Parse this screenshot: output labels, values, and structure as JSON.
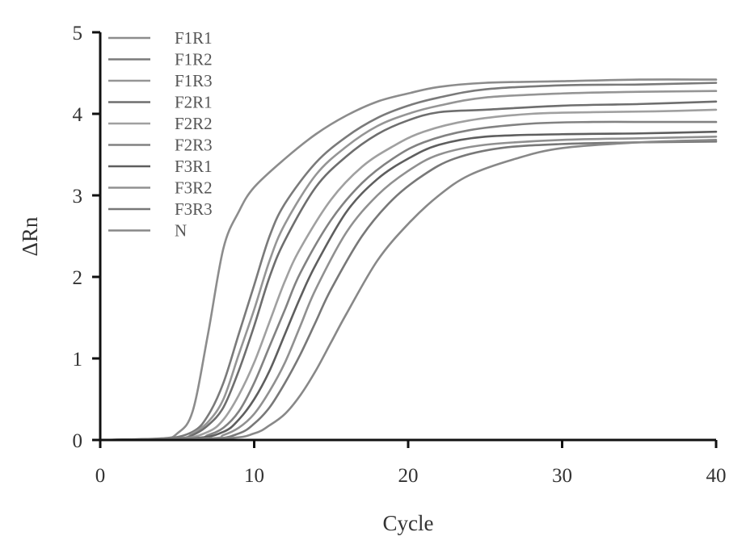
{
  "chart_data": {
    "type": "line",
    "xlabel": "Cycle",
    "ylabel": "ΔRn",
    "xlim": [
      0,
      40
    ],
    "ylim": [
      0,
      5
    ],
    "x_ticks": [
      0,
      10,
      20,
      30,
      40
    ],
    "y_ticks": [
      0,
      1,
      2,
      3,
      4,
      5
    ],
    "grid": false,
    "legend_position": "top-left",
    "series": [
      {
        "name": "F1R1",
        "color": "#8c8c8c",
        "values": [
          [
            0,
            0
          ],
          [
            4,
            0.02
          ],
          [
            5,
            0.08
          ],
          [
            6,
            0.35
          ],
          [
            7,
            1.3
          ],
          [
            8,
            2.35
          ],
          [
            9,
            2.8
          ],
          [
            10,
            3.1
          ],
          [
            12,
            3.45
          ],
          [
            14,
            3.75
          ],
          [
            16,
            3.98
          ],
          [
            18,
            4.15
          ],
          [
            20,
            4.25
          ],
          [
            22,
            4.33
          ],
          [
            25,
            4.38
          ],
          [
            30,
            4.4
          ],
          [
            35,
            4.42
          ],
          [
            40,
            4.42
          ]
        ]
      },
      {
        "name": "F1R2",
        "color": "#7a7a7a",
        "values": [
          [
            0,
            0
          ],
          [
            4,
            0.01
          ],
          [
            6,
            0.1
          ],
          [
            7,
            0.3
          ],
          [
            8,
            0.7
          ],
          [
            9,
            1.3
          ],
          [
            10,
            1.9
          ],
          [
            11,
            2.5
          ],
          [
            12,
            2.9
          ],
          [
            14,
            3.4
          ],
          [
            16,
            3.72
          ],
          [
            18,
            3.95
          ],
          [
            20,
            4.1
          ],
          [
            22,
            4.2
          ],
          [
            25,
            4.3
          ],
          [
            30,
            4.35
          ],
          [
            35,
            4.36
          ],
          [
            40,
            4.38
          ]
        ]
      },
      {
        "name": "F1R3",
        "color": "#959595",
        "values": [
          [
            0,
            0
          ],
          [
            5,
            0.02
          ],
          [
            6,
            0.08
          ],
          [
            7,
            0.22
          ],
          [
            8,
            0.5
          ],
          [
            9,
            1.05
          ],
          [
            10,
            1.6
          ],
          [
            11,
            2.2
          ],
          [
            12,
            2.65
          ],
          [
            14,
            3.25
          ],
          [
            16,
            3.6
          ],
          [
            18,
            3.85
          ],
          [
            20,
            4.0
          ],
          [
            22,
            4.1
          ],
          [
            25,
            4.2
          ],
          [
            30,
            4.25
          ],
          [
            35,
            4.27
          ],
          [
            40,
            4.28
          ]
        ]
      },
      {
        "name": "F2R1",
        "color": "#6e6e6e",
        "values": [
          [
            0,
            0
          ],
          [
            5,
            0.02
          ],
          [
            6,
            0.06
          ],
          [
            7,
            0.18
          ],
          [
            8,
            0.4
          ],
          [
            9,
            0.85
          ],
          [
            10,
            1.4
          ],
          [
            11,
            2.0
          ],
          [
            12,
            2.45
          ],
          [
            14,
            3.1
          ],
          [
            16,
            3.48
          ],
          [
            18,
            3.75
          ],
          [
            20,
            3.92
          ],
          [
            22,
            4.02
          ],
          [
            25,
            4.05
          ],
          [
            30,
            4.1
          ],
          [
            35,
            4.12
          ],
          [
            40,
            4.15
          ]
        ]
      },
      {
        "name": "F2R2",
        "color": "#a0a0a0",
        "values": [
          [
            0,
            0
          ],
          [
            5,
            0.01
          ],
          [
            7,
            0.1
          ],
          [
            8,
            0.25
          ],
          [
            9,
            0.55
          ],
          [
            10,
            0.95
          ],
          [
            11,
            1.45
          ],
          [
            12,
            1.95
          ],
          [
            13,
            2.35
          ],
          [
            15,
            2.95
          ],
          [
            17,
            3.35
          ],
          [
            19,
            3.6
          ],
          [
            21,
            3.78
          ],
          [
            24,
            3.92
          ],
          [
            28,
            4.0
          ],
          [
            32,
            4.02
          ],
          [
            36,
            4.03
          ],
          [
            40,
            4.05
          ]
        ]
      },
      {
        "name": "F2R3",
        "color": "#828282",
        "values": [
          [
            0,
            0
          ],
          [
            6,
            0.02
          ],
          [
            7,
            0.06
          ],
          [
            8,
            0.15
          ],
          [
            9,
            0.35
          ],
          [
            10,
            0.7
          ],
          [
            11,
            1.15
          ],
          [
            12,
            1.6
          ],
          [
            13,
            2.05
          ],
          [
            15,
            2.7
          ],
          [
            17,
            3.15
          ],
          [
            19,
            3.45
          ],
          [
            21,
            3.65
          ],
          [
            24,
            3.8
          ],
          [
            28,
            3.88
          ],
          [
            32,
            3.9
          ],
          [
            36,
            3.9
          ],
          [
            40,
            3.9
          ]
        ]
      },
      {
        "name": "F3R1",
        "color": "#5e5e5e",
        "values": [
          [
            0,
            0
          ],
          [
            6,
            0.02
          ],
          [
            8,
            0.1
          ],
          [
            9,
            0.25
          ],
          [
            10,
            0.5
          ],
          [
            11,
            0.85
          ],
          [
            12,
            1.3
          ],
          [
            13,
            1.75
          ],
          [
            14,
            2.15
          ],
          [
            16,
            2.8
          ],
          [
            18,
            3.2
          ],
          [
            20,
            3.45
          ],
          [
            22,
            3.62
          ],
          [
            25,
            3.72
          ],
          [
            30,
            3.75
          ],
          [
            35,
            3.76
          ],
          [
            40,
            3.78
          ]
        ]
      },
      {
        "name": "F3R2",
        "color": "#909090",
        "values": [
          [
            0,
            0
          ],
          [
            7,
            0.02
          ],
          [
            8,
            0.06
          ],
          [
            9,
            0.15
          ],
          [
            10,
            0.32
          ],
          [
            11,
            0.6
          ],
          [
            12,
            0.95
          ],
          [
            13,
            1.4
          ],
          [
            14,
            1.85
          ],
          [
            16,
            2.55
          ],
          [
            18,
            3.0
          ],
          [
            20,
            3.3
          ],
          [
            22,
            3.5
          ],
          [
            25,
            3.62
          ],
          [
            30,
            3.68
          ],
          [
            35,
            3.7
          ],
          [
            40,
            3.72
          ]
        ]
      },
      {
        "name": "F3R3",
        "color": "#787878",
        "values": [
          [
            0,
            0
          ],
          [
            7,
            0.01
          ],
          [
            9,
            0.08
          ],
          [
            10,
            0.2
          ],
          [
            11,
            0.4
          ],
          [
            12,
            0.7
          ],
          [
            13,
            1.05
          ],
          [
            14,
            1.45
          ],
          [
            15,
            1.85
          ],
          [
            17,
            2.5
          ],
          [
            19,
            2.95
          ],
          [
            21,
            3.25
          ],
          [
            23,
            3.45
          ],
          [
            26,
            3.58
          ],
          [
            30,
            3.63
          ],
          [
            35,
            3.65
          ],
          [
            40,
            3.66
          ]
        ]
      },
      {
        "name": "N",
        "color": "#888888",
        "values": [
          [
            0,
            0
          ],
          [
            8,
            0.02
          ],
          [
            10,
            0.08
          ],
          [
            11,
            0.18
          ],
          [
            12,
            0.32
          ],
          [
            13,
            0.55
          ],
          [
            14,
            0.85
          ],
          [
            15,
            1.2
          ],
          [
            16,
            1.55
          ],
          [
            18,
            2.2
          ],
          [
            20,
            2.65
          ],
          [
            22,
            3.0
          ],
          [
            24,
            3.25
          ],
          [
            27,
            3.45
          ],
          [
            30,
            3.58
          ],
          [
            35,
            3.65
          ],
          [
            40,
            3.68
          ]
        ]
      }
    ]
  }
}
